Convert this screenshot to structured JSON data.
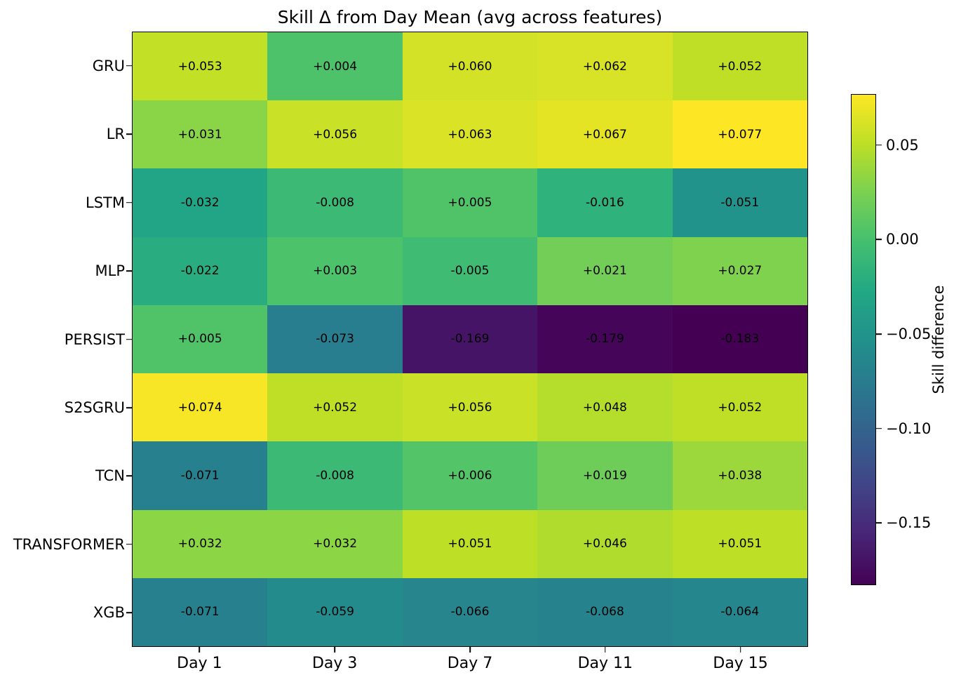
{
  "chart_data": {
    "type": "heatmap",
    "title": "Skill Δ from Day Mean (avg across features)",
    "x_tick_labels": [
      "Day 1",
      "Day 3",
      "Day 7",
      "Day 11",
      "Day 15"
    ],
    "y_tick_labels": [
      "GRU",
      "LR",
      "LSTM",
      "MLP",
      "PERSIST",
      "S2SGRU",
      "TCN",
      "TRANSFORMER",
      "XGB"
    ],
    "values": [
      [
        0.053,
        0.004,
        0.06,
        0.062,
        0.052
      ],
      [
        0.031,
        0.056,
        0.063,
        0.067,
        0.077
      ],
      [
        -0.032,
        -0.008,
        0.005,
        -0.016,
        -0.051
      ],
      [
        -0.022,
        0.003,
        -0.005,
        0.021,
        0.027
      ],
      [
        0.005,
        -0.073,
        -0.169,
        -0.179,
        -0.183
      ],
      [
        0.074,
        0.052,
        0.056,
        0.048,
        0.052
      ],
      [
        -0.071,
        -0.008,
        0.006,
        0.019,
        0.038
      ],
      [
        0.032,
        0.032,
        0.051,
        0.046,
        0.051
      ],
      [
        -0.071,
        -0.059,
        -0.066,
        -0.068,
        -0.064
      ]
    ],
    "cell_label_format": "+0.000",
    "annotation_color": "#000000",
    "colormap": "viridis",
    "colormap_stops": [
      "#440154",
      "#482475",
      "#414487",
      "#355f8d",
      "#2a788e",
      "#21918c",
      "#22a884",
      "#44bf70",
      "#7ad151",
      "#bddf26",
      "#fde725"
    ],
    "vmin": -0.183,
    "vmax": 0.077,
    "grid": false,
    "colorbar": {
      "label": "Skill difference",
      "ticks": [
        {
          "value": 0.05,
          "label": "0.05"
        },
        {
          "value": 0.0,
          "label": "0.00"
        },
        {
          "value": -0.05,
          "label": "−0.05"
        },
        {
          "value": -0.1,
          "label": "−0.10"
        },
        {
          "value": -0.15,
          "label": "−0.15"
        }
      ]
    }
  }
}
